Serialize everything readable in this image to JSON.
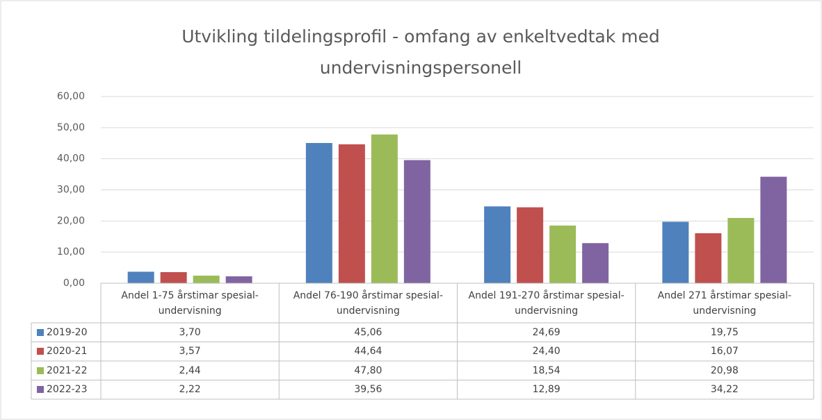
{
  "chart_data": {
    "type": "bar",
    "title": "Utvikling tildelingsprofil - omfang av enkeltvedtak med undervisningspersonell",
    "categories": [
      "Andel 1-75 årstimar spesial-undervisning",
      "Andel 76-190 årstimar spesial-undervisning",
      "Andel 191-270 årstimar spesial-undervisning",
      "Andel 271 årstimar spesial-undervisning"
    ],
    "series": [
      {
        "name": "2019-20",
        "color": "#4f81bd",
        "values": [
          3.7,
          45.06,
          24.69,
          19.75
        ],
        "value_labels": [
          "3,70",
          "45,06",
          "24,69",
          "19,75"
        ]
      },
      {
        "name": "2020-21",
        "color": "#c0504d",
        "values": [
          3.57,
          44.64,
          24.4,
          16.07
        ],
        "value_labels": [
          "3,57",
          "44,64",
          "24,40",
          "16,07"
        ]
      },
      {
        "name": "2021-22",
        "color": "#9bbb59",
        "values": [
          2.44,
          47.8,
          18.54,
          20.98
        ],
        "value_labels": [
          "2,44",
          "47,80",
          "18,54",
          "20,98"
        ]
      },
      {
        "name": "2022-23",
        "color": "#8064a2",
        "values": [
          2.22,
          39.56,
          12.89,
          34.22
        ],
        "value_labels": [
          "2,22",
          "39,56",
          "12,89",
          "34,22"
        ]
      }
    ],
    "ylim": [
      0,
      60
    ],
    "yticks": [
      {
        "value": 0,
        "label": "0,00"
      },
      {
        "value": 10,
        "label": "10,00"
      },
      {
        "value": 20,
        "label": "20,00"
      },
      {
        "value": 30,
        "label": "30,00"
      },
      {
        "value": 40,
        "label": "40,00"
      },
      {
        "value": 50,
        "label": "50,00"
      },
      {
        "value": 60,
        "label": "60,00"
      }
    ],
    "grid": true,
    "data_table": true
  }
}
